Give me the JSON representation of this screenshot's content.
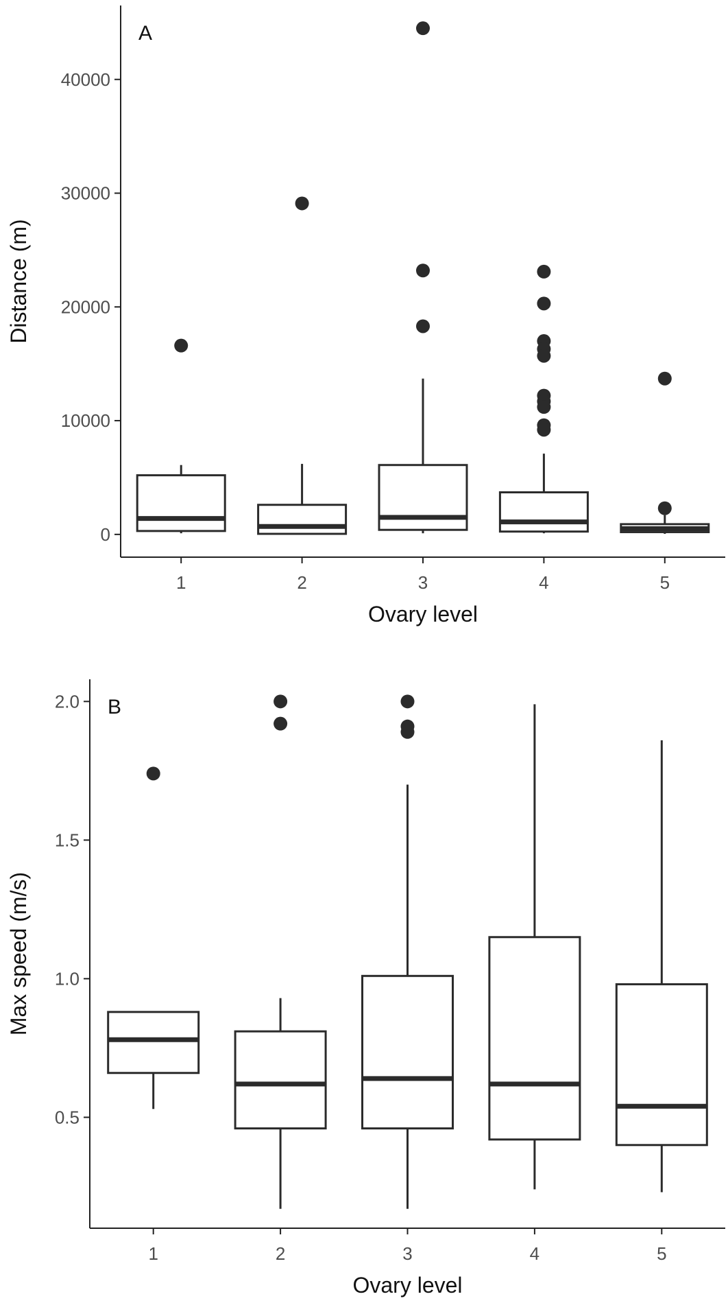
{
  "chart_data": [
    {
      "type": "box",
      "panel_label": "A",
      "xlabel": "Ovary level",
      "ylabel": "Distance (m)",
      "ylim": [
        -2000,
        46500
      ],
      "yticks": [
        0,
        10000,
        20000,
        30000,
        40000
      ],
      "categories": [
        "1",
        "2",
        "3",
        "4",
        "5"
      ],
      "boxes": [
        {
          "category": "1",
          "whisker_low": 100,
          "q1": 300,
          "median": 1400,
          "q3": 5200,
          "whisker_high": 6100,
          "outliers": [
            16600
          ]
        },
        {
          "category": "2",
          "whisker_low": 0,
          "q1": 50,
          "median": 700,
          "q3": 2600,
          "whisker_high": 6200,
          "outliers": [
            29100
          ]
        },
        {
          "category": "3",
          "whisker_low": 100,
          "q1": 400,
          "median": 1500,
          "q3": 6100,
          "whisker_high": 13700,
          "outliers": [
            44500,
            23200,
            18300
          ]
        },
        {
          "category": "4",
          "whisker_low": 100,
          "q1": 250,
          "median": 1100,
          "q3": 3700,
          "whisker_high": 7100,
          "outliers": [
            23100,
            20300,
            17000,
            16300,
            15700,
            12200,
            11700,
            11200,
            9600,
            9200
          ]
        },
        {
          "category": "5",
          "whisker_low": 50,
          "q1": 200,
          "median": 500,
          "q3": 900,
          "whisker_high": 1700,
          "outliers": [
            13700,
            2300
          ]
        }
      ]
    },
    {
      "type": "box",
      "panel_label": "B",
      "xlabel": "Ovary level",
      "ylabel": "Max speed (m/s)",
      "ylim": [
        0.1,
        2.08
      ],
      "yticks": [
        0.5,
        1.0,
        1.5,
        2.0
      ],
      "ytick_labels": [
        "0.5",
        "1.0",
        "1.5",
        "2.0"
      ],
      "categories": [
        "1",
        "2",
        "3",
        "4",
        "5"
      ],
      "boxes": [
        {
          "category": "1",
          "whisker_low": 0.53,
          "q1": 0.66,
          "median": 0.78,
          "q3": 0.88,
          "whisker_high": 0.88,
          "outliers": [
            1.74
          ]
        },
        {
          "category": "2",
          "whisker_low": 0.17,
          "q1": 0.46,
          "median": 0.62,
          "q3": 0.81,
          "whisker_high": 0.93,
          "outliers": [
            2.0,
            1.92
          ]
        },
        {
          "category": "3",
          "whisker_low": 0.17,
          "q1": 0.46,
          "median": 0.64,
          "q3": 1.01,
          "whisker_high": 1.7,
          "outliers": [
            2.0,
            1.91,
            1.89
          ]
        },
        {
          "category": "4",
          "whisker_low": 0.24,
          "q1": 0.42,
          "median": 0.62,
          "q3": 1.15,
          "whisker_high": 1.99,
          "outliers": []
        },
        {
          "category": "5",
          "whisker_low": 0.23,
          "q1": 0.4,
          "median": 0.54,
          "q3": 0.98,
          "whisker_high": 1.86,
          "outliers": []
        }
      ]
    }
  ]
}
